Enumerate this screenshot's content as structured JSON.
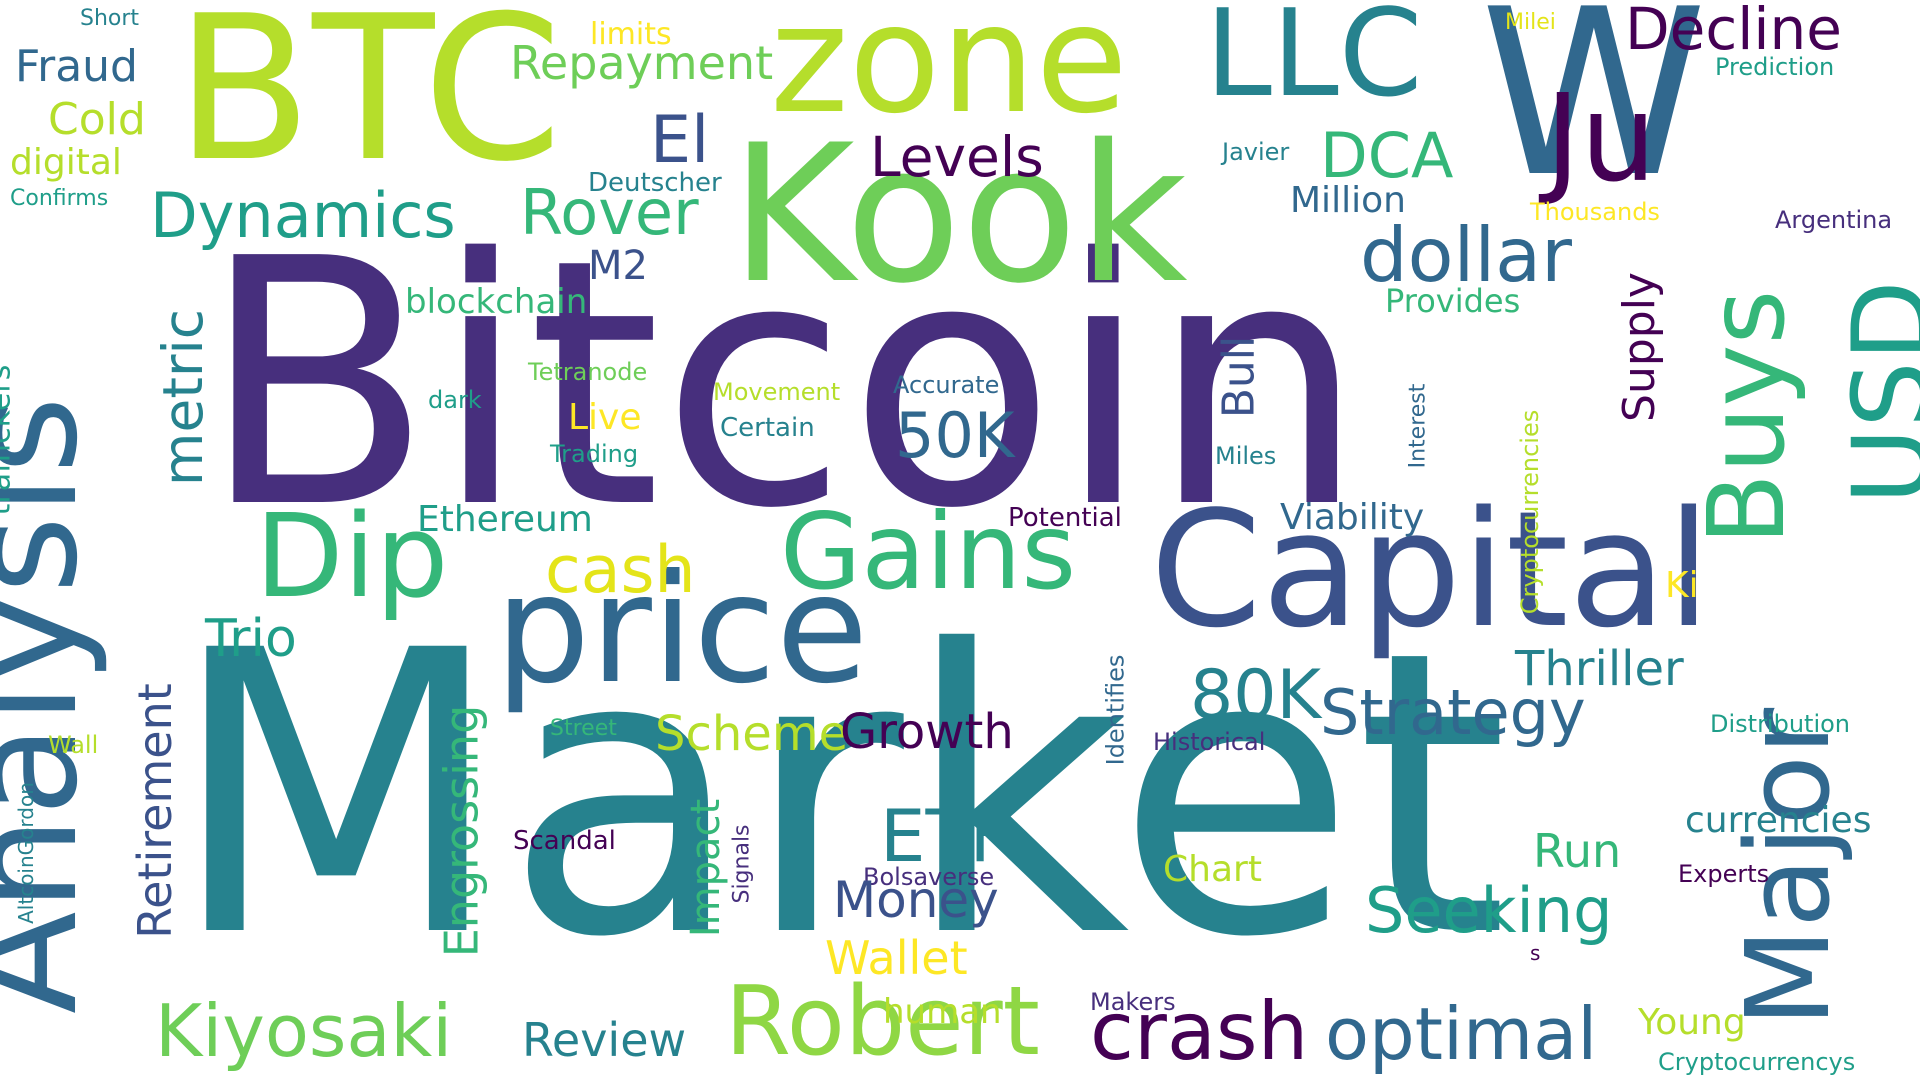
{
  "colors": {
    "background": "#ffffff",
    "deep_purple": "#472f7d",
    "dark_purple": "#440154",
    "indigo": "#3b528b",
    "slate_blue": "#31688e",
    "teal": "#26828e",
    "cyan_green": "#1f9e89",
    "green": "#35b779",
    "lime": "#6ece58",
    "light_lime": "#8fd744",
    "yellow_lime": "#b5de2b",
    "yellow": "#fde725",
    "gold": "#e4e419"
  },
  "words": [
    {
      "text": "Market",
      "color_key": "teal"
    },
    {
      "text": "Bitcoin",
      "color_key": "deep_purple"
    },
    {
      "text": "Kook",
      "color_key": "lime"
    },
    {
      "text": "BTC",
      "color_key": "yellow_lime"
    },
    {
      "text": "zone",
      "color_key": "yellow_lime"
    },
    {
      "text": "LLC",
      "color_key": "teal"
    },
    {
      "text": "W",
      "color_key": "slate_blue"
    },
    {
      "text": "Ju",
      "color_key": "dark_purple"
    },
    {
      "text": "Decline",
      "color_key": "dark_purple"
    },
    {
      "text": "Capital",
      "color_key": "indigo"
    },
    {
      "text": "price",
      "color_key": "slate_blue"
    },
    {
      "text": "Gains",
      "color_key": "green"
    },
    {
      "text": "Dip",
      "color_key": "green"
    },
    {
      "text": "Analysis",
      "color_key": "slate_blue"
    },
    {
      "text": "Major",
      "color_key": "slate_blue"
    },
    {
      "text": "USD",
      "color_key": "cyan_green"
    },
    {
      "text": "Buys",
      "color_key": "green"
    },
    {
      "text": "dollar",
      "color_key": "slate_blue"
    },
    {
      "text": "Robert",
      "color_key": "light_lime"
    },
    {
      "text": "crash",
      "color_key": "dark_purple"
    },
    {
      "text": "optimal",
      "color_key": "slate_blue"
    },
    {
      "text": "Kiyosaki",
      "color_key": "lime"
    },
    {
      "text": "Seeking",
      "color_key": "cyan_green"
    },
    {
      "text": "Strategy",
      "color_key": "slate_blue"
    },
    {
      "text": "80K",
      "color_key": "teal"
    },
    {
      "text": "50K",
      "color_key": "slate_blue"
    },
    {
      "text": "ETF",
      "color_key": "teal"
    },
    {
      "text": "Dynamics",
      "color_key": "cyan_green"
    },
    {
      "text": "Rover",
      "color_key": "green"
    },
    {
      "text": "El",
      "color_key": "indigo"
    },
    {
      "text": "Levels",
      "color_key": "dark_purple"
    },
    {
      "text": "DCA",
      "color_key": "green"
    },
    {
      "text": "Repayment",
      "color_key": "lime"
    },
    {
      "text": "Fraud",
      "color_key": "slate_blue"
    },
    {
      "text": "Cold",
      "color_key": "yellow_lime"
    },
    {
      "text": "digital",
      "color_key": "yellow_lime"
    },
    {
      "text": "Confirms",
      "color_key": "cyan_green"
    },
    {
      "text": "Short",
      "color_key": "teal"
    },
    {
      "text": "limits",
      "color_key": "yellow"
    },
    {
      "text": "Milei",
      "color_key": "gold"
    },
    {
      "text": "Prediction",
      "color_key": "cyan_green"
    },
    {
      "text": "Million",
      "color_key": "slate_blue"
    },
    {
      "text": "Javier",
      "color_key": "teal"
    },
    {
      "text": "Deutscher",
      "color_key": "teal"
    },
    {
      "text": "Thousands",
      "color_key": "yellow"
    },
    {
      "text": "Argentina",
      "color_key": "deep_purple"
    },
    {
      "text": "M2",
      "color_key": "indigo"
    },
    {
      "text": "blockchain",
      "color_key": "green"
    },
    {
      "text": "Provides",
      "color_key": "green"
    },
    {
      "text": "metric",
      "color_key": "teal"
    },
    {
      "text": "Supply",
      "color_key": "dark_purple"
    },
    {
      "text": "Bull",
      "color_key": "indigo"
    },
    {
      "text": "traffickers",
      "color_key": "cyan_green"
    },
    {
      "text": "Tetranode",
      "color_key": "lime"
    },
    {
      "text": "dark",
      "color_key": "cyan_green"
    },
    {
      "text": "Movement",
      "color_key": "yellow_lime"
    },
    {
      "text": "Accurate",
      "color_key": "slate_blue"
    },
    {
      "text": "Live",
      "color_key": "yellow"
    },
    {
      "text": "Certain",
      "color_key": "teal"
    },
    {
      "text": "Trading",
      "color_key": "cyan_green"
    },
    {
      "text": "Miles",
      "color_key": "teal"
    },
    {
      "text": "Interest",
      "color_key": "slate_blue"
    },
    {
      "text": "Cryptocurrencies",
      "color_key": "yellow_lime"
    },
    {
      "text": "Ethereum",
      "color_key": "cyan_green"
    },
    {
      "text": "Potential",
      "color_key": "dark_purple"
    },
    {
      "text": "Viability",
      "color_key": "slate_blue"
    },
    {
      "text": "cash",
      "color_key": "gold"
    },
    {
      "text": "Ki",
      "color_key": "yellow"
    },
    {
      "text": "Trio",
      "color_key": "cyan_green"
    },
    {
      "text": "Thriller",
      "color_key": "teal"
    },
    {
      "text": "Identifies",
      "color_key": "slate_blue"
    },
    {
      "text": "Retirement",
      "color_key": "indigo"
    },
    {
      "text": "Engrossing",
      "color_key": "green"
    },
    {
      "text": "Scheme",
      "color_key": "yellow_lime"
    },
    {
      "text": "Growth",
      "color_key": "dark_purple"
    },
    {
      "text": "Distribution",
      "color_key": "cyan_green"
    },
    {
      "text": "Historical",
      "color_key": "deep_purple"
    },
    {
      "text": "Street",
      "color_key": "green"
    },
    {
      "text": "Wall",
      "color_key": "yellow_lime"
    },
    {
      "text": "currencies",
      "color_key": "teal"
    },
    {
      "text": "Run",
      "color_key": "green"
    },
    {
      "text": "AltcoinGordon",
      "color_key": "teal"
    },
    {
      "text": "Impact",
      "color_key": "green"
    },
    {
      "text": "Signals",
      "color_key": "deep_purple"
    },
    {
      "text": "Scandal",
      "color_key": "dark_purple"
    },
    {
      "text": "Chart",
      "color_key": "yellow_lime"
    },
    {
      "text": "Bolsaverse",
      "color_key": "deep_purple"
    },
    {
      "text": "Money",
      "color_key": "indigo"
    },
    {
      "text": "Experts",
      "color_key": "dark_purple"
    },
    {
      "text": "Wallet",
      "color_key": "yellow"
    },
    {
      "text": "s",
      "color_key": "dark_purple"
    },
    {
      "text": "Makers",
      "color_key": "deep_purple"
    },
    {
      "text": "human",
      "color_key": "yellow_lime"
    },
    {
      "text": "Review",
      "color_key": "teal"
    },
    {
      "text": "Young",
      "color_key": "yellow_lime"
    },
    {
      "text": "Cryptocurrencys",
      "color_key": "cyan_green"
    }
  ]
}
